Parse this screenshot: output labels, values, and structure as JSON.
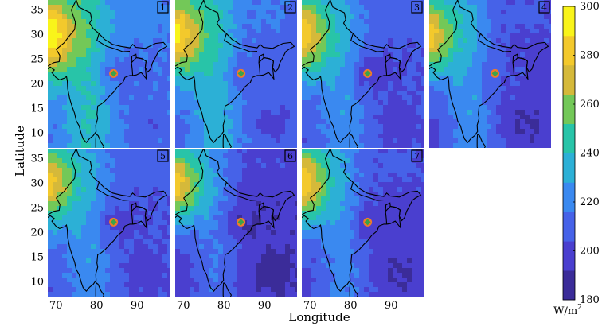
{
  "chart_data": {
    "type": "heatmap",
    "xlabel": "Longitude",
    "ylabel": "Latitude",
    "x_ticks": [
      70,
      80,
      90
    ],
    "y_ticks": [
      10,
      15,
      20,
      25,
      30,
      35
    ],
    "xlim": [
      68,
      98
    ],
    "ylim": [
      7,
      37
    ],
    "colorbar": {
      "ticks": [
        180,
        200,
        220,
        240,
        260,
        280,
        300
      ],
      "range": [
        180,
        300
      ],
      "unit_base": "W/m",
      "unit_exp": "2",
      "colors": [
        "#3b2c99",
        "#4a3fcf",
        "#4662e8",
        "#3a89f0",
        "#2cb0d6",
        "#28c4a8",
        "#73c858",
        "#d5b93a",
        "#f3c92c",
        "#f9f41a"
      ]
    },
    "station": {
      "lon": 84.2,
      "lat": 22.1,
      "outer_color": "#f07a2a",
      "inner_color": "#3aa34a"
    },
    "panels": [
      {
        "label": "1",
        "west_max": 300,
        "center": 240,
        "east": 215,
        "hotspot": 210
      },
      {
        "label": "2",
        "west_max": 290,
        "center": 235,
        "east": 210,
        "hotspot": 210
      },
      {
        "label": "3",
        "west_max": 285,
        "center": 225,
        "east": 205,
        "hotspot": 195
      },
      {
        "label": "4",
        "west_max": 280,
        "center": 225,
        "east": 200,
        "hotspot": 205
      },
      {
        "label": "5",
        "west_max": 280,
        "center": 225,
        "east": 205,
        "hotspot": 198
      },
      {
        "label": "6",
        "west_max": 280,
        "center": 215,
        "east": 195,
        "hotspot": 190
      },
      {
        "label": "7",
        "west_max": 285,
        "center": 220,
        "east": 200,
        "hotspot": 195
      }
    ]
  }
}
